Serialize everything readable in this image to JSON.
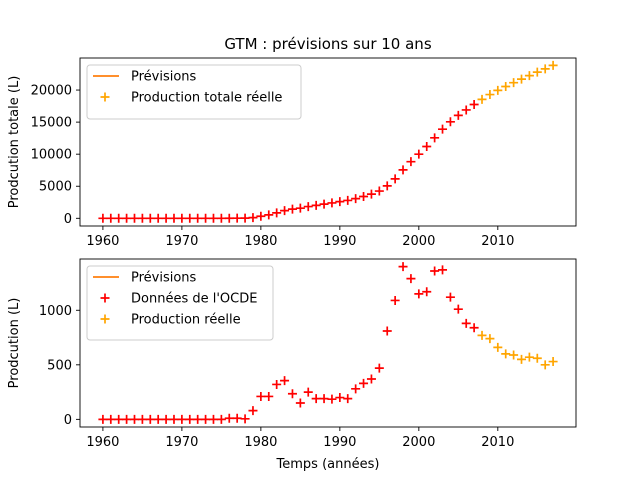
{
  "chart_data": [
    {
      "type": "scatter",
      "title": "GTM : prévisions sur 10 ans",
      "xlabel": "",
      "ylabel": "Prodcution totale (L)",
      "xlim": [
        1957.1,
        2019.9
      ],
      "ylim": [
        -1200,
        25000
      ],
      "xticks": [
        1960,
        1970,
        1980,
        1990,
        2000,
        2010
      ],
      "yticks": [
        0,
        5000,
        10000,
        15000,
        20000
      ],
      "grid": false,
      "legend_position": "top-left",
      "legend": [
        {
          "label": "Prévisions",
          "marker": "line",
          "color": "#ff7f0e"
        },
        {
          "label": "Production totale réelle",
          "marker": "plus",
          "color": "#ffa500"
        }
      ],
      "series": [
        {
          "color": "#ff0000",
          "marker": "plus",
          "x": [
            1960,
            1961,
            1962,
            1963,
            1964,
            1965,
            1966,
            1967,
            1968,
            1969,
            1970,
            1971,
            1972,
            1973,
            1974,
            1975,
            1976,
            1977,
            1978,
            1979,
            1980,
            1981,
            1982,
            1983,
            1984,
            1985,
            1986,
            1987,
            1988,
            1989,
            1990,
            1991,
            1992,
            1993,
            1994,
            1995,
            1996,
            1997,
            1998,
            1999,
            2000,
            2001,
            2002,
            2003,
            2004,
            2005,
            2006,
            2007
          ],
          "y": [
            0,
            0,
            0,
            0,
            0,
            0,
            0,
            0,
            0,
            0,
            0,
            0,
            0,
            0,
            0,
            0,
            10,
            20,
            30,
            110,
            320,
            530,
            850,
            1200,
            1430,
            1580,
            1830,
            2020,
            2210,
            2400,
            2600,
            2790,
            3070,
            3400,
            3770,
            4250,
            5060,
            6150,
            7550,
            8830,
            10000,
            11200,
            12550,
            13900,
            15050,
            16050,
            16900,
            17750
          ]
        },
        {
          "name": "Production totale réelle",
          "color": "#ffa500",
          "marker": "plus",
          "x": [
            2008,
            2009,
            2010,
            2011,
            2012,
            2013,
            2014,
            2015,
            2016,
            2017
          ],
          "y": [
            18550,
            19300,
            19950,
            20550,
            21150,
            21700,
            22250,
            22800,
            23300,
            23850
          ]
        }
      ]
    },
    {
      "type": "scatter",
      "title": "",
      "xlabel": "Temps (années)",
      "ylabel": "Prodcution (L)",
      "xlim": [
        1957.1,
        2019.9
      ],
      "ylim": [
        -70,
        1470
      ],
      "xticks": [
        1960,
        1970,
        1980,
        1990,
        2000,
        2010
      ],
      "yticks": [
        0,
        500,
        1000
      ],
      "grid": false,
      "legend_position": "top-left",
      "legend": [
        {
          "label": "Prévisions",
          "marker": "line",
          "color": "#ff7f0e"
        },
        {
          "label": "Données de l'OCDE",
          "marker": "plus",
          "color": "#ff0000"
        },
        {
          "label": "Production réelle",
          "marker": "plus",
          "color": "#ffa500"
        }
      ],
      "series": [
        {
          "name": "Données de l'OCDE",
          "color": "#ff0000",
          "marker": "plus",
          "x": [
            1960,
            1961,
            1962,
            1963,
            1964,
            1965,
            1966,
            1967,
            1968,
            1969,
            1970,
            1971,
            1972,
            1973,
            1974,
            1975,
            1976,
            1977,
            1978,
            1979,
            1980,
            1981,
            1982,
            1983,
            1984,
            1985,
            1986,
            1987,
            1988,
            1989,
            1990,
            1991,
            1992,
            1993,
            1994,
            1995,
            1996,
            1997,
            1998,
            1999,
            2000,
            2001,
            2002,
            2003,
            2004,
            2005,
            2006,
            2007
          ],
          "y": [
            0,
            0,
            0,
            0,
            0,
            0,
            0,
            0,
            0,
            0,
            0,
            0,
            0,
            0,
            0,
            0,
            10,
            10,
            5,
            80,
            210,
            210,
            320,
            355,
            235,
            150,
            250,
            190,
            190,
            185,
            200,
            190,
            280,
            330,
            370,
            470,
            810,
            1090,
            1400,
            1290,
            1150,
            1170,
            1360,
            1370,
            1120,
            1010,
            880,
            840
          ]
        },
        {
          "name": "Production réelle",
          "color": "#ffa500",
          "marker": "plus",
          "x": [
            2008,
            2009,
            2010,
            2011,
            2012,
            2013,
            2014,
            2015,
            2016,
            2017
          ],
          "y": [
            770,
            740,
            660,
            600,
            590,
            550,
            570,
            560,
            500,
            530
          ]
        }
      ]
    }
  ]
}
